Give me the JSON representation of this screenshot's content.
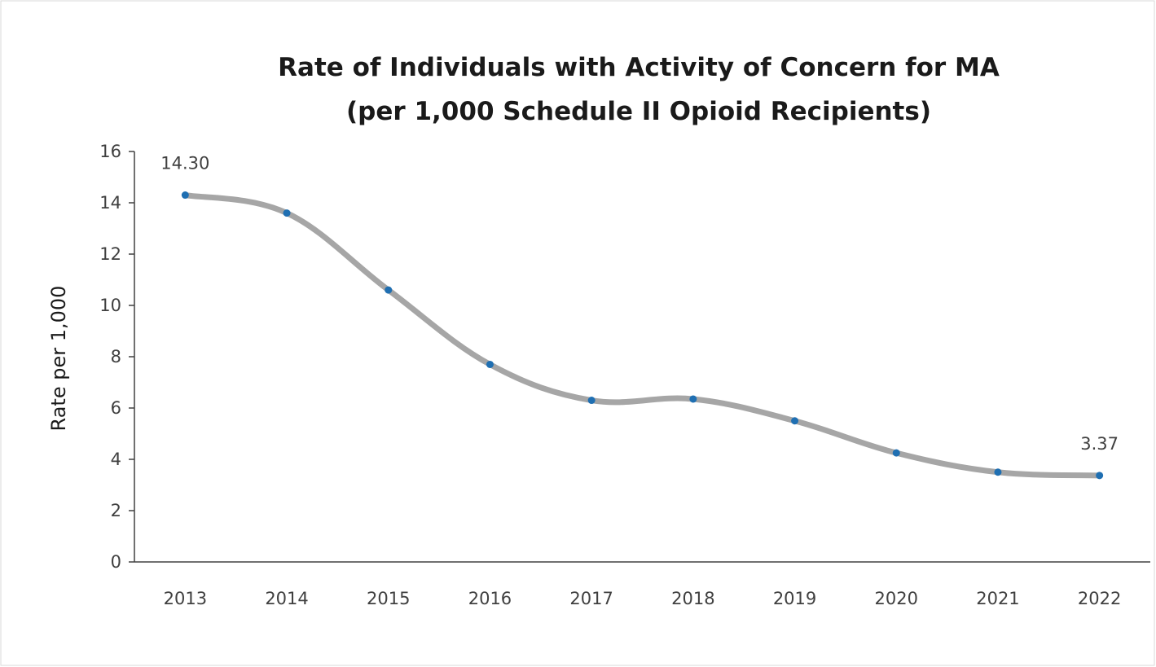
{
  "chart_data": {
    "type": "line",
    "title": "Rate of Individuals with Activity of Concern for MA (per 1,000 Schedule II Opioid Recipients)",
    "title_lines": [
      "Rate of Individuals with Activity of Concern for MA",
      "(per 1,000 Schedule II Opioid Recipients)"
    ],
    "xlabel": "",
    "ylabel": "Rate per 1,000",
    "categories": [
      "2013",
      "2014",
      "2015",
      "2016",
      "2017",
      "2018",
      "2019",
      "2020",
      "2021",
      "2022"
    ],
    "series": [
      {
        "values": [
          14.3,
          13.6,
          10.6,
          7.7,
          6.3,
          6.35,
          5.5,
          4.25,
          3.5,
          3.37
        ],
        "line_color": "#a6a6a6",
        "marker_color": "#1f6fb2"
      }
    ],
    "data_labels": [
      {
        "index": 0,
        "text": "14.30"
      },
      {
        "index": 9,
        "text": "3.37"
      }
    ],
    "ylim": [
      0,
      16
    ],
    "yticks": [
      0,
      2,
      4,
      6,
      8,
      10,
      12,
      14,
      16
    ],
    "grid": false,
    "legend": "none"
  }
}
